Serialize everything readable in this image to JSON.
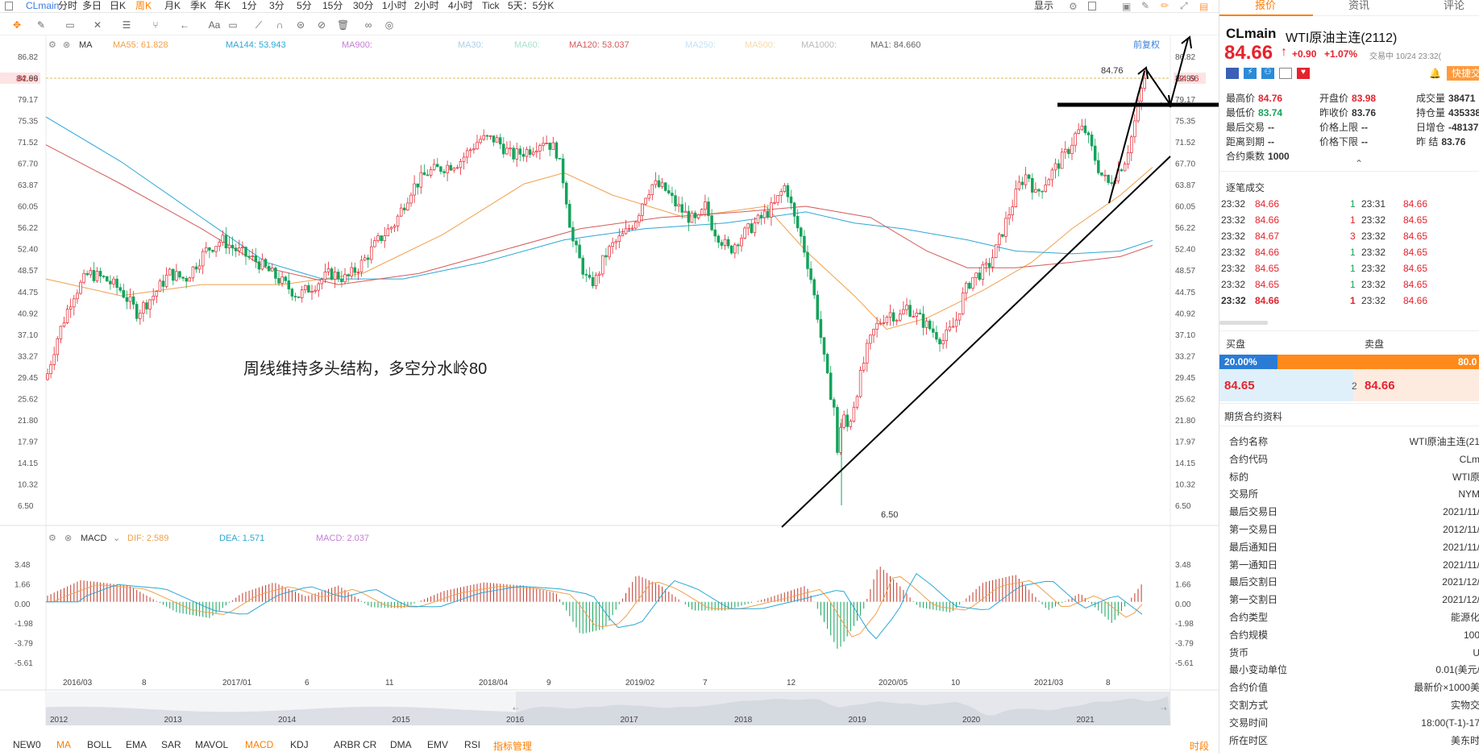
{
  "topbar": {
    "symbol": "CLmain",
    "timeframes": [
      "分时",
      "多日",
      "日K",
      "周K",
      "月K",
      "季K",
      "年K",
      "1分",
      "3分",
      "5分",
      "15分",
      "30分",
      "1小时",
      "2小时",
      "4小时",
      "Tick",
      "5天：5分K"
    ],
    "active_timeframe": "周K",
    "display_label": "显示"
  },
  "indicator_bar": {
    "type_label": "MA",
    "ma55": "MA55: 61.828",
    "ma144": "MA144: 53.943",
    "ma900": "MA900:",
    "ma30": "MA30:",
    "ma60": "MA60:",
    "ma120": "MA120: 53.037",
    "ma250": "MA250:",
    "ma500": "MA500:",
    "ma1000": "MA1000:",
    "ma1": "MA1: 84.660",
    "adjust_label": "前复权"
  },
  "price_axis": [
    "86.82",
    "82.99",
    "79.17",
    "75.35",
    "71.52",
    "67.70",
    "63.87",
    "60.05",
    "56.22",
    "52.40",
    "48.57",
    "44.75",
    "40.92",
    "37.10",
    "33.27",
    "29.45",
    "25.62",
    "21.80",
    "17.97",
    "14.15",
    "10.32",
    "6.50"
  ],
  "current_price_label": "84.66",
  "high_marker": "84.76",
  "low_marker": "6.50",
  "annotation_text": "周线维持多头结构，多空分水岭80",
  "macd_bar": {
    "label": "MACD",
    "dif": "DIF: 2.589",
    "dea": "DEA: 1.571",
    "macd": "MACD: 2.037"
  },
  "macd_axis": [
    "3.48",
    "1.66",
    "0.00",
    "-1.98",
    "-3.79",
    "-5.61"
  ],
  "time_axis": [
    "2016/03",
    "8",
    "2017/01",
    "6",
    "11",
    "2018/04",
    "9",
    "2019/02",
    "7",
    "12",
    "2020/05",
    "10",
    "2021/03",
    "8"
  ],
  "overview_years": [
    "2012",
    "2013",
    "2014",
    "2015",
    "2016",
    "2017",
    "2018",
    "2019",
    "2020",
    "2021"
  ],
  "bottom_indicators": [
    "NEW0",
    "MA",
    "BOLL",
    "EMA",
    "SAR",
    "MAVOL",
    "MACD",
    "KDJ",
    "ARBR",
    "CR",
    "DMA",
    "EMV",
    "RSI",
    "指标管理"
  ],
  "bottom_right": "时段",
  "right_panel": {
    "tabs": [
      "报价",
      "资讯",
      "评论"
    ],
    "code": "CLmain",
    "name": "WTI原油主连(2112)",
    "price": "84.66",
    "change": "+0.90",
    "change_pct": "+1.07%",
    "trade_status": "交易中 10/24 23:32(",
    "quick_trade": "快捷交",
    "quote_left": [
      {
        "k": "最高价",
        "v": "84.76",
        "c": "red"
      },
      {
        "k": "最低价",
        "v": "83.74",
        "c": "green"
      },
      {
        "k": "最后交易",
        "v": "--",
        "c": ""
      },
      {
        "k": "距离到期",
        "v": "--",
        "c": ""
      },
      {
        "k": "合约乘数",
        "v": "1000",
        "c": ""
      }
    ],
    "quote_mid": [
      {
        "k": "开盘价",
        "v": "83.98",
        "c": "red"
      },
      {
        "k": "昨收价",
        "v": "83.76",
        "c": ""
      },
      {
        "k": "价格上限",
        "v": "--",
        "c": ""
      },
      {
        "k": "价格下限",
        "v": "--",
        "c": ""
      }
    ],
    "quote_right": [
      {
        "k": "成交量",
        "v": "38471",
        "c": ""
      },
      {
        "k": "持仓量",
        "v": "435338",
        "c": ""
      },
      {
        "k": "日增仓",
        "v": "-48137",
        "c": ""
      },
      {
        "k": "昨  结",
        "v": "83.76",
        "c": ""
      }
    ],
    "trades_title": "逐笔成交",
    "trades": [
      {
        "t1": "23:32",
        "p1": "84.66",
        "q": "1",
        "qc": "green",
        "t2": "23:31",
        "p2": "84.66"
      },
      {
        "t1": "23:32",
        "p1": "84.66",
        "q": "1",
        "qc": "red",
        "t2": "23:32",
        "p2": "84.65"
      },
      {
        "t1": "23:32",
        "p1": "84.67",
        "q": "3",
        "qc": "red",
        "t2": "23:32",
        "p2": "84.65"
      },
      {
        "t1": "23:32",
        "p1": "84.66",
        "q": "1",
        "qc": "green",
        "t2": "23:32",
        "p2": "84.65"
      },
      {
        "t1": "23:32",
        "p1": "84.65",
        "q": "1",
        "qc": "green",
        "t2": "23:32",
        "p2": "84.65"
      },
      {
        "t1": "23:32",
        "p1": "84.65",
        "q": "1",
        "qc": "green",
        "t2": "23:32",
        "p2": "84.65"
      },
      {
        "t1": "23:32",
        "p1": "84.66",
        "q": "1",
        "qc": "red",
        "t2": "23:32",
        "p2": "84.66"
      }
    ],
    "buy_label": "买盘",
    "sell_label": "卖盘",
    "buy_pct": "20.00%",
    "sell_pct": "80.0",
    "bid_price": "84.65",
    "bid_qty": "2",
    "ask_price": "84.66",
    "contract_title": "期货合约资料",
    "contract": [
      {
        "k": "合约名称",
        "v": "WTI原油主连(21"
      },
      {
        "k": "合约代码",
        "v": "CLm"
      },
      {
        "k": "标的",
        "v": "WTI原"
      },
      {
        "k": "交易所",
        "v": "NYM"
      },
      {
        "k": "最后交易日",
        "v": "2021/11/"
      },
      {
        "k": "第一交易日",
        "v": "2012/11/"
      },
      {
        "k": "最后通知日",
        "v": "2021/11/"
      },
      {
        "k": "第一通知日",
        "v": "2021/11/"
      },
      {
        "k": "最后交割日",
        "v": "2021/12/"
      },
      {
        "k": "第一交割日",
        "v": "2021/12/"
      },
      {
        "k": "合约类型",
        "v": "能源化"
      },
      {
        "k": "合约规模",
        "v": "100"
      },
      {
        "k": "货币",
        "v": "U"
      },
      {
        "k": "最小变动单位",
        "v": "0.01(美元/"
      },
      {
        "k": "合约价值",
        "v": "最新价×1000美"
      },
      {
        "k": "交割方式",
        "v": "实物交"
      },
      {
        "k": "交易时间",
        "v": "18:00(T-1)-17"
      },
      {
        "k": "所在时区",
        "v": "美东时"
      }
    ]
  },
  "colors": {
    "up": "#e5232d",
    "down": "#14a35a",
    "accent": "#ff7d00",
    "ma55": "#f0a04b",
    "ma144": "#2ba7d6",
    "ma120": "#d45a5a"
  }
}
